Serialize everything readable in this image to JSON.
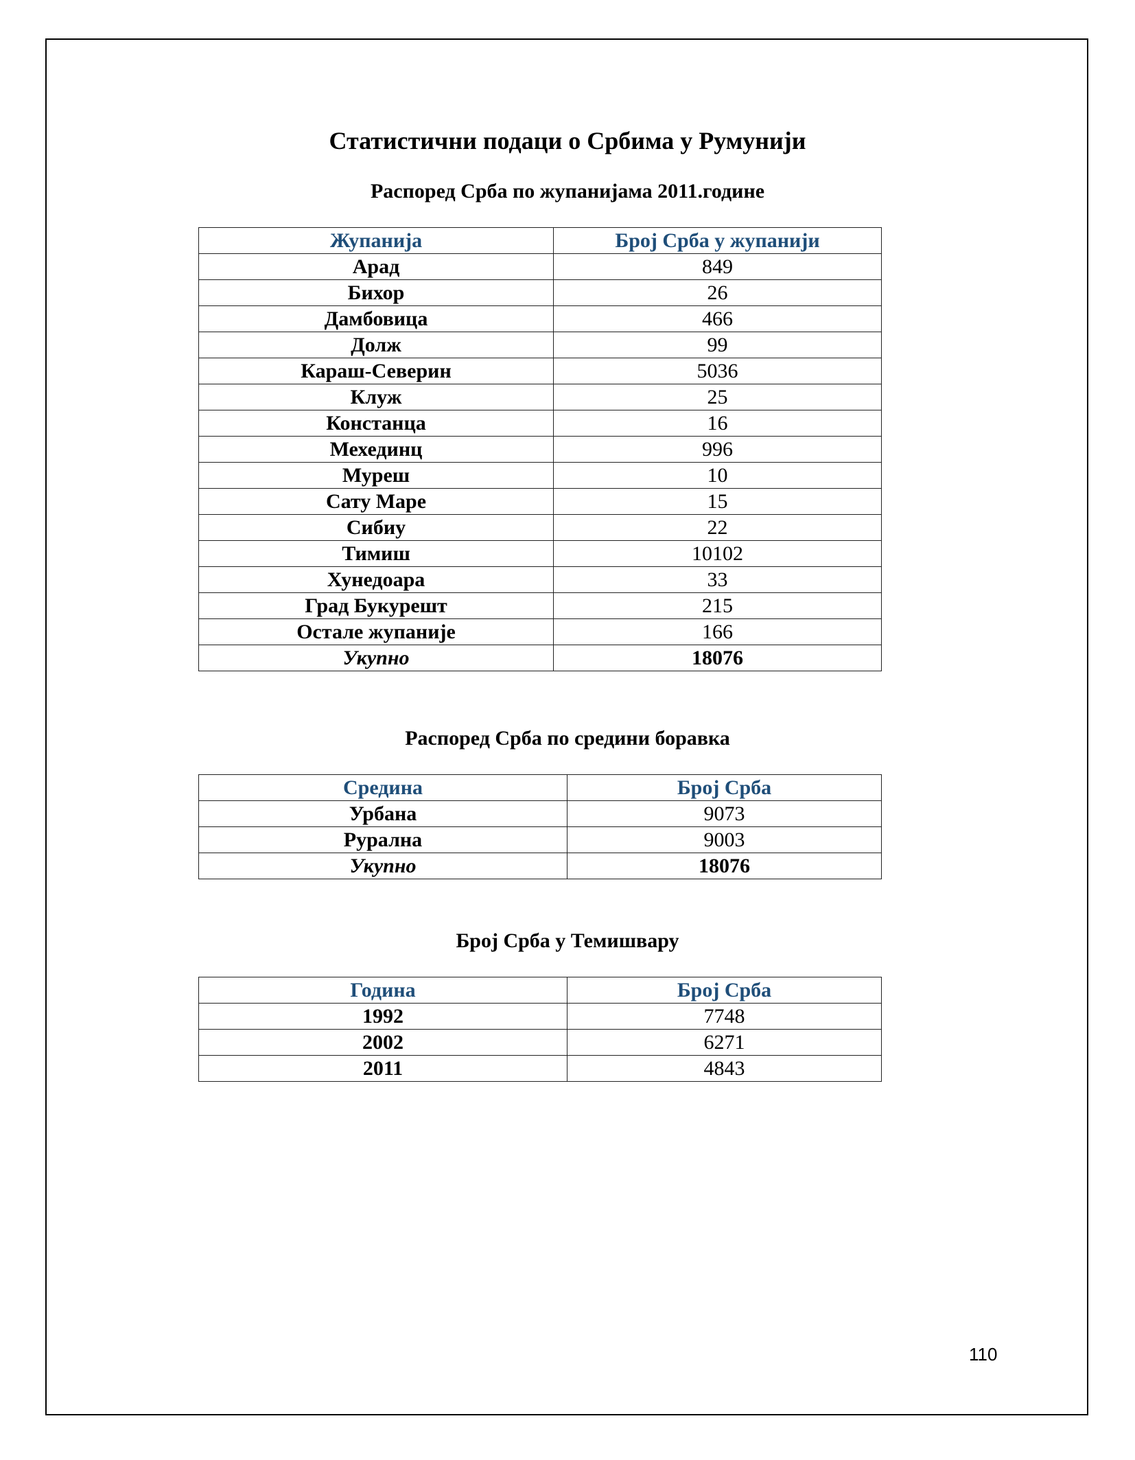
{
  "title": "Статистични подаци о Србима у Румунији",
  "table1": {
    "caption": "Распоред Срба по жупанијама 2011.године",
    "headers": [
      "Жупанија",
      "Број Срба у жупанији"
    ],
    "rows": [
      [
        "Арад",
        "849"
      ],
      [
        "Бихор",
        "26"
      ],
      [
        "Дамбовица",
        "466"
      ],
      [
        "Долж",
        "99"
      ],
      [
        "Караш-Северин",
        "5036"
      ],
      [
        "Клуж",
        "25"
      ],
      [
        "Констанца",
        "16"
      ],
      [
        "Мехединц",
        "996"
      ],
      [
        "Муреш",
        "10"
      ],
      [
        "Сату Маре",
        "15"
      ],
      [
        "Сибиу",
        "22"
      ],
      [
        "Тимиш",
        "10102"
      ],
      [
        "Хунедоара",
        "33"
      ],
      [
        "Град Букурешт",
        "215"
      ],
      [
        "Остале жупаније",
        "166"
      ]
    ],
    "total": [
      "Укупно",
      "18076"
    ]
  },
  "table2": {
    "caption": "Распоред Срба по средини боравка",
    "headers": [
      "Средина",
      "Број Срба"
    ],
    "rows": [
      [
        "Урбана",
        "9073"
      ],
      [
        "Рурална",
        "9003"
      ]
    ],
    "total": [
      "Укупно",
      "18076"
    ]
  },
  "table3": {
    "caption": "Број Срба у Темишвару",
    "headers": [
      "Година",
      "Број Срба"
    ],
    "rows": [
      [
        "1992",
        "7748"
      ],
      [
        "2002",
        "6271"
      ],
      [
        "2011",
        "4843"
      ]
    ]
  },
  "page_number": "110",
  "colors": {
    "header_text": "#1F4E79"
  }
}
